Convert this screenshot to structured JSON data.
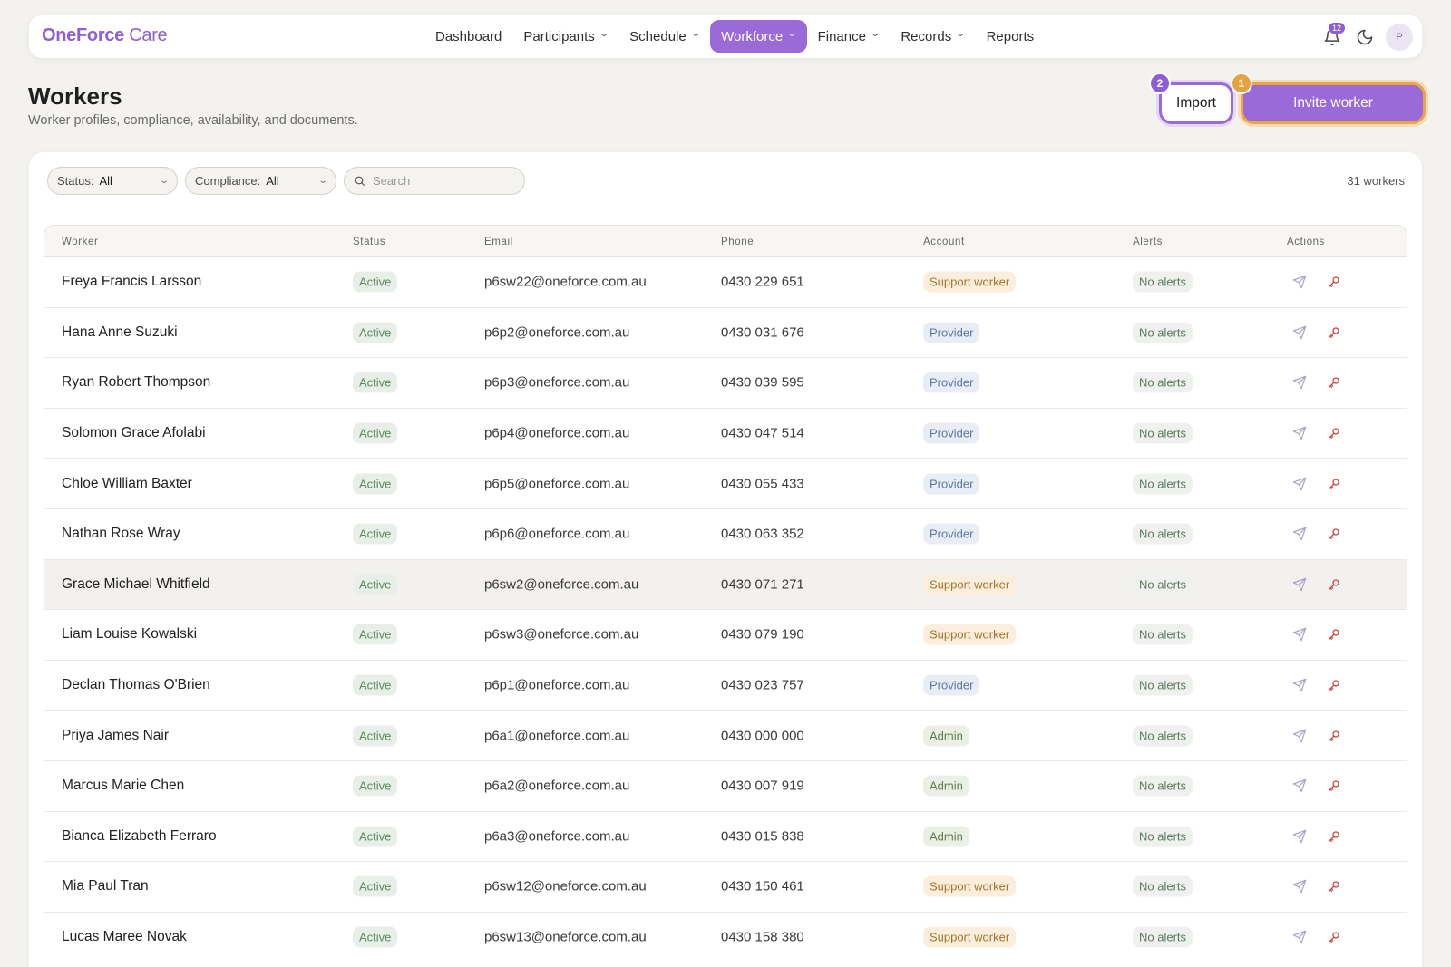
{
  "app": {
    "logo_brand": "OneForce",
    "logo_suffix": "Care"
  },
  "nav": {
    "items": [
      {
        "label": "Dashboard",
        "has_menu": false
      },
      {
        "label": "Participants",
        "has_menu": true
      },
      {
        "label": "Schedule",
        "has_menu": true
      },
      {
        "label": "Workforce",
        "has_menu": true,
        "active": true
      },
      {
        "label": "Finance",
        "has_menu": true
      },
      {
        "label": "Records",
        "has_menu": true
      },
      {
        "label": "Reports",
        "has_menu": false
      }
    ],
    "notification_count": "12",
    "avatar_initial": "P"
  },
  "header": {
    "title": "Workers",
    "subtitle": "Worker profiles, compliance, availability, and documents.",
    "import_label": "Import",
    "import_step": "2",
    "invite_label": "Invite worker",
    "invite_step": "1"
  },
  "filters": {
    "status_label": "Status:",
    "status_value": "All",
    "compliance_label": "Compliance:",
    "compliance_value": "All",
    "search_placeholder": "Search",
    "count": "31 workers"
  },
  "table": {
    "columns": [
      "Worker",
      "Status",
      "Email",
      "Phone",
      "Account",
      "Alerts",
      "Actions"
    ],
    "rows": [
      {
        "name": "Freya Francis Larsson",
        "status": "Active",
        "email": "p6sw22@oneforce.com.au",
        "phone": "0430 229 651",
        "account": "Support worker",
        "alerts": "No alerts"
      },
      {
        "name": "Hana Anne Suzuki",
        "status": "Active",
        "email": "p6p2@oneforce.com.au",
        "phone": "0430 031 676",
        "account": "Provider",
        "alerts": "No alerts"
      },
      {
        "name": "Ryan Robert Thompson",
        "status": "Active",
        "email": "p6p3@oneforce.com.au",
        "phone": "0430 039 595",
        "account": "Provider",
        "alerts": "No alerts"
      },
      {
        "name": "Solomon Grace Afolabi",
        "status": "Active",
        "email": "p6p4@oneforce.com.au",
        "phone": "0430 047 514",
        "account": "Provider",
        "alerts": "No alerts"
      },
      {
        "name": "Chloe William Baxter",
        "status": "Active",
        "email": "p6p5@oneforce.com.au",
        "phone": "0430 055 433",
        "account": "Provider",
        "alerts": "No alerts"
      },
      {
        "name": "Nathan Rose Wray",
        "status": "Active",
        "email": "p6p6@oneforce.com.au",
        "phone": "0430 063 352",
        "account": "Provider",
        "alerts": "No alerts"
      },
      {
        "name": "Grace Michael Whitfield",
        "status": "Active",
        "email": "p6sw2@oneforce.com.au",
        "phone": "0430 071 271",
        "account": "Support worker",
        "alerts": "No alerts",
        "hovered": true
      },
      {
        "name": "Liam Louise Kowalski",
        "status": "Active",
        "email": "p6sw3@oneforce.com.au",
        "phone": "0430 079 190",
        "account": "Support worker",
        "alerts": "No alerts"
      },
      {
        "name": "Declan Thomas O'Brien",
        "status": "Active",
        "email": "p6p1@oneforce.com.au",
        "phone": "0430 023 757",
        "account": "Provider",
        "alerts": "No alerts"
      },
      {
        "name": "Priya James Nair",
        "status": "Active",
        "email": "p6a1@oneforce.com.au",
        "phone": "0430 000 000",
        "account": "Admin",
        "alerts": "No alerts"
      },
      {
        "name": "Marcus Marie Chen",
        "status": "Active",
        "email": "p6a2@oneforce.com.au",
        "phone": "0430 007 919",
        "account": "Admin",
        "alerts": "No alerts"
      },
      {
        "name": "Bianca Elizabeth Ferraro",
        "status": "Active",
        "email": "p6a3@oneforce.com.au",
        "phone": "0430 015 838",
        "account": "Admin",
        "alerts": "No alerts"
      },
      {
        "name": "Mia Paul Tran",
        "status": "Active",
        "email": "p6sw12@oneforce.com.au",
        "phone": "0430 150 461",
        "account": "Support worker",
        "alerts": "No alerts"
      },
      {
        "name": "Lucas Maree Novak",
        "status": "Active",
        "email": "p6sw13@oneforce.com.au",
        "phone": "0430 158 380",
        "account": "Support worker",
        "alerts": "No alerts"
      },
      {
        "name": "",
        "status": "",
        "email": "",
        "phone": "",
        "account": "",
        "alerts": ""
      }
    ]
  },
  "colors": {
    "accent": "#9a6ad8",
    "highlight_orange": "#e8a649"
  }
}
